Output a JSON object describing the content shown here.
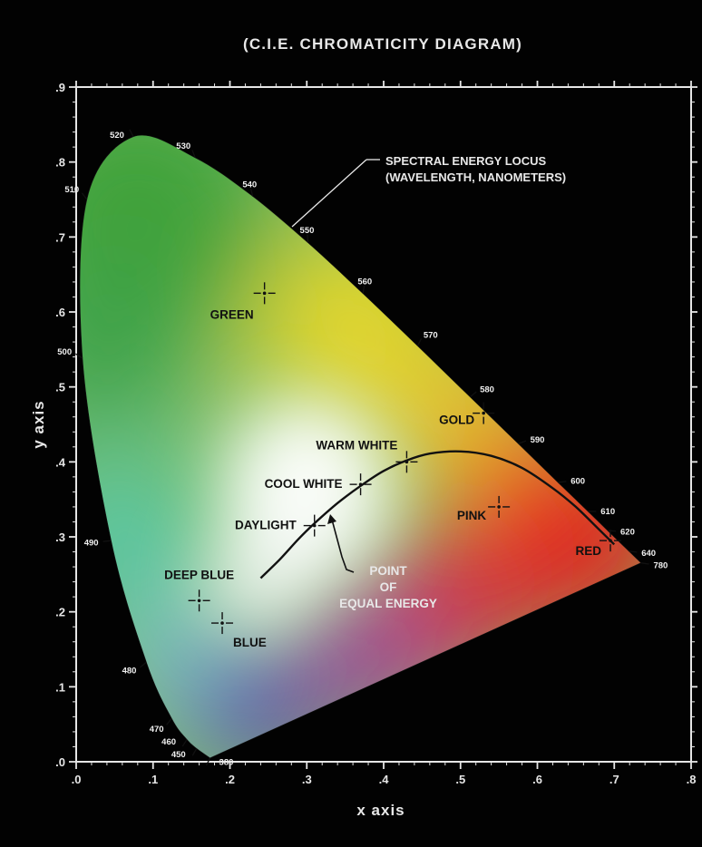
{
  "chart_data": {
    "type": "scatter",
    "title": "(C.I.E. CHROMATICITY DIAGRAM)",
    "xlabel": "x axis",
    "ylabel": "y axis",
    "xlim": [
      0,
      0.8
    ],
    "ylim": [
      0,
      0.9
    ],
    "xticks": [
      ".0",
      ".1",
      ".2",
      ".3",
      ".4",
      ".5",
      ".6",
      ".7",
      ".8"
    ],
    "yticks": [
      ".0",
      ".1",
      ".2",
      ".3",
      ".4",
      ".5",
      ".6",
      ".7",
      ".8",
      ".9"
    ],
    "locus_title_line1": "SPECTRAL ENERGY LOCUS",
    "locus_title_line2": "(WAVELENGTH, NANOMETERS)",
    "spectral_locus": [
      {
        "wavelength": "380",
        "x": 0.1741,
        "y": 0.005
      },
      {
        "wavelength": "450",
        "x": 0.1566,
        "y": 0.0177
      },
      {
        "wavelength": "460",
        "x": 0.144,
        "y": 0.0297
      },
      {
        "wavelength": "470",
        "x": 0.1241,
        "y": 0.0578
      },
      {
        "wavelength": "480",
        "x": 0.0913,
        "y": 0.1327
      },
      {
        "wavelength": "490",
        "x": 0.0454,
        "y": 0.295
      },
      {
        "wavelength": "500",
        "x": 0.0082,
        "y": 0.5384
      },
      {
        "wavelength": "510",
        "x": 0.0139,
        "y": 0.7502
      },
      {
        "wavelength": "520",
        "x": 0.0743,
        "y": 0.8338
      },
      {
        "wavelength": "530",
        "x": 0.1547,
        "y": 0.8059
      },
      {
        "wavelength": "540",
        "x": 0.2296,
        "y": 0.7543
      },
      {
        "wavelength": "550",
        "x": 0.3016,
        "y": 0.6923
      },
      {
        "wavelength": "560",
        "x": 0.3731,
        "y": 0.6245
      },
      {
        "wavelength": "570",
        "x": 0.4441,
        "y": 0.5547
      },
      {
        "wavelength": "580",
        "x": 0.5125,
        "y": 0.4866
      },
      {
        "wavelength": "590",
        "x": 0.5752,
        "y": 0.4242
      },
      {
        "wavelength": "600",
        "x": 0.627,
        "y": 0.3725
      },
      {
        "wavelength": "610",
        "x": 0.6658,
        "y": 0.334
      },
      {
        "wavelength": "620",
        "x": 0.6915,
        "y": 0.3083
      },
      {
        "wavelength": "640",
        "x": 0.719,
        "y": 0.2809
      },
      {
        "wavelength": "780",
        "x": 0.7347,
        "y": 0.2653
      }
    ],
    "planckian_locus": [
      {
        "x": 0.24,
        "y": 0.245
      },
      {
        "x": 0.265,
        "y": 0.27
      },
      {
        "x": 0.29,
        "y": 0.298
      },
      {
        "x": 0.31,
        "y": 0.318
      },
      {
        "x": 0.34,
        "y": 0.345
      },
      {
        "x": 0.37,
        "y": 0.368
      },
      {
        "x": 0.4,
        "y": 0.388
      },
      {
        "x": 0.43,
        "y": 0.402
      },
      {
        "x": 0.46,
        "y": 0.411
      },
      {
        "x": 0.5,
        "y": 0.414
      },
      {
        "x": 0.54,
        "y": 0.408
      },
      {
        "x": 0.58,
        "y": 0.392
      },
      {
        "x": 0.62,
        "y": 0.365
      },
      {
        "x": 0.65,
        "y": 0.34
      },
      {
        "x": 0.68,
        "y": 0.31
      },
      {
        "x": 0.7,
        "y": 0.29
      }
    ],
    "points": [
      {
        "name": "GREEN",
        "x": 0.245,
        "y": 0.625
      },
      {
        "name": "GOLD",
        "x": 0.53,
        "y": 0.465
      },
      {
        "name": "WARM WHITE",
        "x": 0.43,
        "y": 0.4
      },
      {
        "name": "COOL WHITE",
        "x": 0.37,
        "y": 0.37
      },
      {
        "name": "DAYLIGHT",
        "x": 0.31,
        "y": 0.315
      },
      {
        "name": "PINK",
        "x": 0.55,
        "y": 0.34
      },
      {
        "name": "RED",
        "x": 0.695,
        "y": 0.295
      },
      {
        "name": "DEEP BLUE",
        "x": 0.16,
        "y": 0.215
      },
      {
        "name": "BLUE",
        "x": 0.19,
        "y": 0.185
      }
    ],
    "equal_energy": {
      "line1": "POINT",
      "line2": "OF",
      "line3": "EQUAL ENERGY",
      "x": 0.333,
      "y": 0.333
    },
    "grid": false,
    "legend": "none",
    "colors": {
      "background": "#020202",
      "axis": "#e6e6e6",
      "text": "#e8e8e8",
      "green": "#3fa23a",
      "yellow": "#e3d62b",
      "red": "#e3241e",
      "blue": "#5a4ab8",
      "cyan": "#57c6a6",
      "white": "#ffffff",
      "curve": "#111111"
    }
  }
}
